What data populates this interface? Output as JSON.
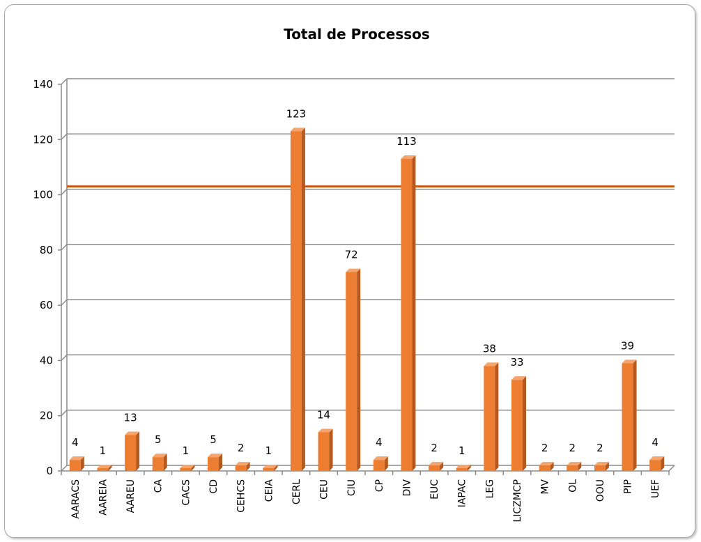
{
  "chart_data": {
    "type": "bar",
    "title": "Total de Processos",
    "xlabel": "",
    "ylabel": "",
    "ylim": [
      0,
      140
    ],
    "yticks": [
      0,
      20,
      40,
      60,
      80,
      100,
      120,
      140
    ],
    "grid": true,
    "legend": "none",
    "reference_line": 101,
    "categories": [
      "AARACS",
      "AAREIA",
      "AAREU",
      "CA",
      "CACS",
      "CD",
      "CEHCS",
      "CEIA",
      "CERL",
      "CEU",
      "CIU",
      "CP",
      "DIV",
      "EUC",
      "IAPAC",
      "LEG",
      "LICZMCP",
      "MV",
      "OL",
      "OOU",
      "PIP",
      "UEF"
    ],
    "values": [
      4,
      1,
      13,
      5,
      1,
      5,
      2,
      1,
      123,
      14,
      72,
      4,
      113,
      2,
      1,
      38,
      33,
      2,
      2,
      2,
      39,
      4
    ],
    "bar_color": "#ED7D31",
    "bar_side_color": "#B5591E",
    "reference_line_color": "#C55A11",
    "grid_color": "#8C8C8C"
  }
}
